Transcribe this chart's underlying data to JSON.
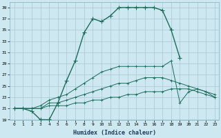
{
  "xlabel": "Humidex (Indice chaleur)",
  "bg_color": "#cde8f0",
  "grid_color": "#a8c8d4",
  "line_color": "#1a6b5a",
  "xlim": [
    -0.5,
    23.5
  ],
  "ylim": [
    19,
    40
  ],
  "yticks": [
    19,
    21,
    23,
    25,
    27,
    29,
    31,
    33,
    35,
    37,
    39
  ],
  "xticks": [
    0,
    1,
    2,
    3,
    4,
    5,
    6,
    7,
    8,
    9,
    10,
    11,
    12,
    13,
    14,
    15,
    16,
    17,
    18,
    19,
    20,
    21,
    22,
    23
  ],
  "x_curve1": [
    0,
    1,
    2,
    3,
    4,
    5,
    6,
    7,
    8,
    9,
    10,
    11,
    12,
    13,
    14,
    15,
    16,
    17,
    18,
    19
  ],
  "y_curve1": [
    21.0,
    21.0,
    20.5,
    19.0,
    19.0,
    22.0,
    26.0,
    29.5,
    34.5,
    37.0,
    36.5,
    37.5,
    39.0,
    39.0,
    39.0,
    39.0,
    39.0,
    38.5,
    35.0,
    30.0
  ],
  "x_curve2": [
    0,
    1,
    2,
    3,
    4,
    5,
    6,
    7,
    8,
    9,
    10,
    11,
    12,
    13,
    14,
    15,
    16,
    17,
    18,
    19,
    20,
    21,
    22,
    23
  ],
  "y_curve2": [
    21.0,
    21.0,
    21.0,
    21.5,
    22.5,
    23.0,
    23.5,
    24.5,
    25.5,
    26.5,
    27.5,
    28.0,
    28.5,
    28.5,
    28.5,
    28.5,
    28.5,
    28.5,
    29.5,
    22.0,
    24.0,
    24.5,
    24.0,
    23.0
  ],
  "x_curve3": [
    0,
    1,
    2,
    3,
    4,
    5,
    6,
    7,
    8,
    9,
    10,
    11,
    12,
    13,
    14,
    15,
    16,
    17,
    18,
    19,
    20,
    21,
    22,
    23
  ],
  "y_curve3": [
    21.0,
    21.0,
    21.0,
    21.0,
    22.0,
    22.0,
    22.5,
    23.0,
    23.5,
    24.0,
    24.5,
    25.0,
    25.5,
    25.5,
    26.0,
    26.5,
    26.5,
    26.5,
    26.0,
    25.5,
    25.0,
    24.5,
    24.0,
    23.5
  ],
  "x_curve4": [
    0,
    1,
    2,
    3,
    4,
    5,
    6,
    7,
    8,
    9,
    10,
    11,
    12,
    13,
    14,
    15,
    16,
    17,
    18,
    19,
    20,
    21,
    22,
    23
  ],
  "y_curve4": [
    21.0,
    21.0,
    21.0,
    21.0,
    21.5,
    21.5,
    21.5,
    22.0,
    22.0,
    22.5,
    22.5,
    23.0,
    23.0,
    23.5,
    23.5,
    24.0,
    24.0,
    24.0,
    24.5,
    24.5,
    24.5,
    24.0,
    23.5,
    23.0
  ]
}
